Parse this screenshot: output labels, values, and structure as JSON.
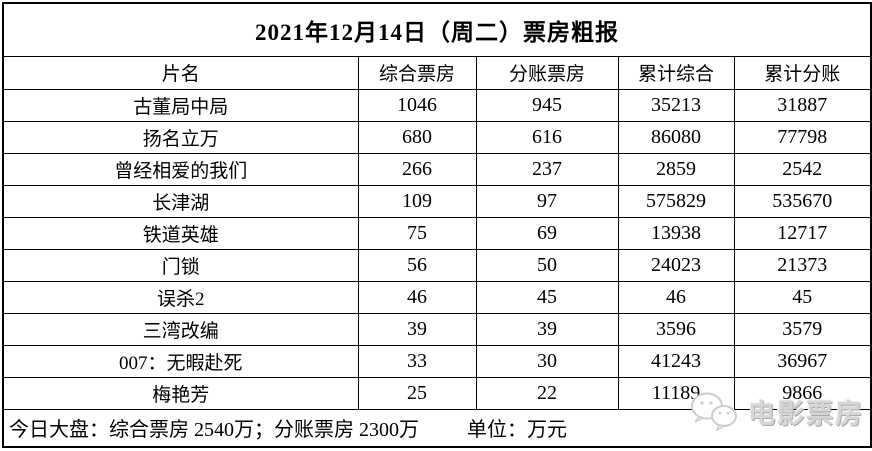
{
  "title": "2021年12月14日（周二）票房粗报",
  "table": {
    "headers": [
      "片名",
      "综合票房",
      "分账票房",
      "累计综合",
      "累计分账"
    ],
    "rows": [
      [
        "古董局中局",
        "1046",
        "945",
        "35213",
        "31887"
      ],
      [
        "扬名立万",
        "680",
        "616",
        "86080",
        "77798"
      ],
      [
        "曾经相爱的我们",
        "266",
        "237",
        "2859",
        "2542"
      ],
      [
        "长津湖",
        "109",
        "97",
        "575829",
        "535670"
      ],
      [
        "铁道英雄",
        "75",
        "69",
        "13938",
        "12717"
      ],
      [
        "门锁",
        "56",
        "50",
        "24023",
        "21373"
      ],
      [
        "误杀2",
        "46",
        "45",
        "46",
        "45"
      ],
      [
        "三湾改编",
        "39",
        "39",
        "3596",
        "3579"
      ],
      [
        "007：无暇赴死",
        "33",
        "30",
        "41243",
        "36967"
      ],
      [
        "梅艳芳",
        "25",
        "22",
        "11189",
        "9866"
      ]
    ]
  },
  "chart_data": {
    "type": "table",
    "title": "2021年12月14日（周二）票房粗报",
    "columns": [
      "片名",
      "综合票房",
      "分账票房",
      "累计综合",
      "累计分账"
    ],
    "rows": [
      {
        "film": "古董局中局",
        "综合票房": 1046,
        "分账票房": 945,
        "累计综合": 35213,
        "累计分账": 31887
      },
      {
        "film": "扬名立万",
        "综合票房": 680,
        "分账票房": 616,
        "累计综合": 86080,
        "累计分账": 77798
      },
      {
        "film": "曾经相爱的我们",
        "综合票房": 266,
        "分账票房": 237,
        "累计综合": 2859,
        "累计分账": 2542
      },
      {
        "film": "长津湖",
        "综合票房": 109,
        "分账票房": 97,
        "累计综合": 575829,
        "累计分账": 535670
      },
      {
        "film": "铁道英雄",
        "综合票房": 75,
        "分账票房": 69,
        "累计综合": 13938,
        "累计分账": 12717
      },
      {
        "film": "门锁",
        "综合票房": 56,
        "分账票房": 50,
        "累计综合": 24023,
        "累计分账": 21373
      },
      {
        "film": "误杀2",
        "综合票房": 46,
        "分账票房": 45,
        "累计综合": 46,
        "累计分账": 45
      },
      {
        "film": "三湾改编",
        "综合票房": 39,
        "分账票房": 39,
        "累计综合": 3596,
        "累计分账": 3579
      },
      {
        "film": "007：无暇赴死",
        "综合票房": 33,
        "分账票房": 30,
        "累计综合": 41243,
        "累计分账": 36967
      },
      {
        "film": "梅艳芳",
        "综合票房": 25,
        "分账票房": 22,
        "累计综合": 11189,
        "累计分账": 9866
      }
    ],
    "unit": "万元"
  },
  "footer": {
    "summary": "今日大盘：综合票房 2540万；分账票房 2300万",
    "unit_label": "单位：万元"
  },
  "watermark": {
    "text": "电影票房",
    "color": "#d6d6d6"
  }
}
